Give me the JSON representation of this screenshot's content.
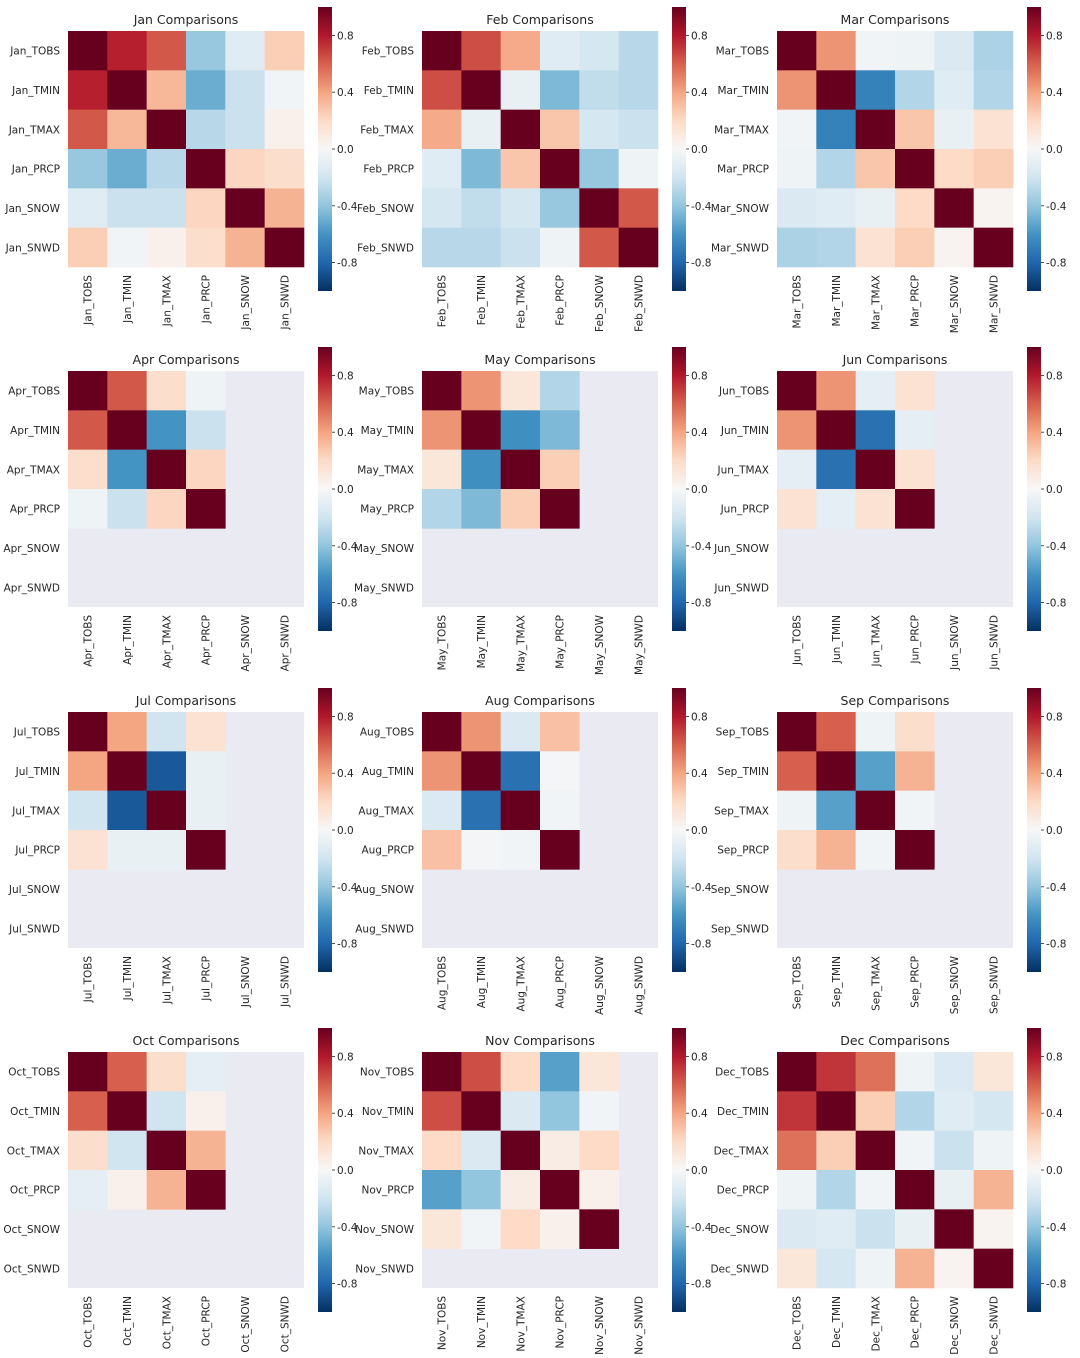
{
  "chart_data": [
    {
      "type": "heatmap",
      "title": "Jan Comparisons",
      "labels": [
        "Jan_TOBS",
        "Jan_TMIN",
        "Jan_TMAX",
        "Jan_PRCP",
        "Jan_SNOW",
        "Jan_SNWD"
      ],
      "values": [
        [
          1.0,
          0.78,
          0.62,
          -0.38,
          -0.12,
          0.25
        ],
        [
          0.78,
          1.0,
          0.33,
          -0.5,
          -0.22,
          -0.03
        ],
        [
          0.62,
          0.33,
          1.0,
          -0.28,
          -0.22,
          0.05
        ],
        [
          -0.38,
          -0.5,
          -0.28,
          1.0,
          0.22,
          0.18
        ],
        [
          -0.12,
          -0.22,
          -0.22,
          0.22,
          1.0,
          0.35
        ],
        [
          0.25,
          -0.03,
          0.05,
          0.18,
          0.35,
          1.0
        ]
      ],
      "vmin": -1.0,
      "vmax": 1.0,
      "colorbar_ticks": [
        "0.8",
        "0.4",
        "0.0",
        "-0.4",
        "-0.8"
      ]
    },
    {
      "type": "heatmap",
      "title": "Feb Comparisons",
      "labels": [
        "Feb_TOBS",
        "Feb_TMIN",
        "Feb_TMAX",
        "Feb_PRCP",
        "Feb_SNOW",
        "Feb_SNWD"
      ],
      "values": [
        [
          1.0,
          0.65,
          0.38,
          -0.12,
          -0.18,
          -0.28
        ],
        [
          0.65,
          1.0,
          -0.08,
          -0.45,
          -0.25,
          -0.28
        ],
        [
          0.38,
          -0.08,
          1.0,
          0.28,
          -0.18,
          -0.22
        ],
        [
          -0.12,
          -0.45,
          0.28,
          1.0,
          -0.38,
          -0.05
        ],
        [
          -0.18,
          -0.25,
          -0.18,
          -0.38,
          1.0,
          0.62
        ],
        [
          -0.28,
          -0.28,
          -0.22,
          -0.05,
          0.62,
          1.0
        ]
      ],
      "vmin": -1.0,
      "vmax": 1.0,
      "colorbar_ticks": [
        "0.8",
        "0.4",
        "0.0",
        "-0.4",
        "-0.8"
      ]
    },
    {
      "type": "heatmap",
      "title": "Mar Comparisons",
      "labels": [
        "Mar_TOBS",
        "Mar_TMIN",
        "Mar_TMAX",
        "Mar_PRCP",
        "Mar_SNOW",
        "Mar_SNWD"
      ],
      "values": [
        [
          1.0,
          0.45,
          -0.03,
          -0.05,
          -0.15,
          -0.32
        ],
        [
          0.45,
          1.0,
          -0.68,
          -0.3,
          -0.12,
          -0.3
        ],
        [
          -0.03,
          -0.68,
          1.0,
          0.28,
          -0.08,
          0.15
        ],
        [
          -0.05,
          -0.3,
          0.28,
          1.0,
          0.2,
          0.25
        ],
        [
          -0.15,
          -0.12,
          -0.08,
          0.2,
          1.0,
          0.03
        ],
        [
          -0.32,
          -0.3,
          0.15,
          0.25,
          0.03,
          1.0
        ]
      ],
      "vmin": -1.0,
      "vmax": 1.0,
      "colorbar_ticks": [
        "0.8",
        "0.4",
        "0.0",
        "-0.4",
        "-0.8"
      ]
    },
    {
      "type": "heatmap",
      "title": "Apr Comparisons",
      "labels": [
        "Apr_TOBS",
        "Apr_TMIN",
        "Apr_TMAX",
        "Apr_PRCP",
        "Apr_SNOW",
        "Apr_SNWD"
      ],
      "values": [
        [
          1.0,
          0.62,
          0.18,
          -0.05,
          null,
          null
        ],
        [
          0.62,
          1.0,
          -0.6,
          -0.22,
          null,
          null
        ],
        [
          0.18,
          -0.6,
          1.0,
          0.22,
          null,
          null
        ],
        [
          -0.05,
          -0.22,
          0.22,
          1.0,
          null,
          null
        ],
        [
          null,
          null,
          null,
          null,
          null,
          null
        ],
        [
          null,
          null,
          null,
          null,
          null,
          null
        ]
      ],
      "vmin": -1.0,
      "vmax": 1.0,
      "colorbar_ticks": [
        "0.8",
        "0.4",
        "0.0",
        "-0.4",
        "-0.8"
      ]
    },
    {
      "type": "heatmap",
      "title": "May Comparisons",
      "labels": [
        "May_TOBS",
        "May_TMIN",
        "May_TMAX",
        "May_PRCP",
        "May_SNOW",
        "May_SNWD"
      ],
      "values": [
        [
          1.0,
          0.45,
          0.12,
          -0.3,
          null,
          null
        ],
        [
          0.45,
          1.0,
          -0.62,
          -0.45,
          null,
          null
        ],
        [
          0.12,
          -0.62,
          1.0,
          0.25,
          null,
          null
        ],
        [
          -0.3,
          -0.45,
          0.25,
          1.0,
          null,
          null
        ],
        [
          null,
          null,
          null,
          null,
          null,
          null
        ],
        [
          null,
          null,
          null,
          null,
          null,
          null
        ]
      ],
      "vmin": -1.0,
      "vmax": 1.0,
      "colorbar_ticks": [
        "0.8",
        "0.4",
        "0.0",
        "-0.4",
        "-0.8"
      ]
    },
    {
      "type": "heatmap",
      "title": "Jun Comparisons",
      "labels": [
        "Jun_TOBS",
        "Jun_TMIN",
        "Jun_TMAX",
        "Jun_PRCP",
        "Jun_SNOW",
        "Jun_SNWD"
      ],
      "values": [
        [
          1.0,
          0.45,
          -0.1,
          0.15,
          null,
          null
        ],
        [
          0.45,
          1.0,
          -0.75,
          -0.1,
          null,
          null
        ],
        [
          -0.1,
          -0.75,
          1.0,
          0.15,
          null,
          null
        ],
        [
          0.15,
          -0.1,
          0.15,
          1.0,
          null,
          null
        ],
        [
          null,
          null,
          null,
          null,
          null,
          null
        ],
        [
          null,
          null,
          null,
          null,
          null,
          null
        ]
      ],
      "vmin": -1.0,
      "vmax": 1.0,
      "colorbar_ticks": [
        "0.8",
        "0.4",
        "0.0",
        "-0.4",
        "-0.8"
      ]
    },
    {
      "type": "heatmap",
      "title": "Jul Comparisons",
      "labels": [
        "Jul_TOBS",
        "Jul_TMIN",
        "Jul_TMAX",
        "Jul_PRCP",
        "Jul_SNOW",
        "Jul_SNWD"
      ],
      "values": [
        [
          1.0,
          0.4,
          -0.2,
          0.15,
          null,
          null
        ],
        [
          0.4,
          1.0,
          -0.85,
          -0.08,
          null,
          null
        ],
        [
          -0.2,
          -0.85,
          1.0,
          -0.08,
          null,
          null
        ],
        [
          0.15,
          -0.08,
          -0.08,
          1.0,
          null,
          null
        ],
        [
          null,
          null,
          null,
          null,
          null,
          null
        ],
        [
          null,
          null,
          null,
          null,
          null,
          null
        ]
      ],
      "vmin": -1.0,
      "vmax": 1.0,
      "colorbar_ticks": [
        "0.8",
        "0.4",
        "0.0",
        "-0.4",
        "-0.8"
      ]
    },
    {
      "type": "heatmap",
      "title": "Aug Comparisons",
      "labels": [
        "Aug_TOBS",
        "Aug_TMIN",
        "Aug_TMAX",
        "Aug_PRCP",
        "Aug_SNOW",
        "Aug_SNWD"
      ],
      "values": [
        [
          1.0,
          0.45,
          -0.15,
          0.3,
          null,
          null
        ],
        [
          0.45,
          1.0,
          -0.75,
          -0.02,
          null,
          null
        ],
        [
          -0.15,
          -0.75,
          1.0,
          -0.03,
          null,
          null
        ],
        [
          0.3,
          -0.02,
          -0.03,
          1.0,
          null,
          null
        ],
        [
          null,
          null,
          null,
          null,
          null,
          null
        ],
        [
          null,
          null,
          null,
          null,
          null,
          null
        ]
      ],
      "vmin": -1.0,
      "vmax": 1.0,
      "colorbar_ticks": [
        "0.8",
        "0.4",
        "0.0",
        "-0.4",
        "-0.8"
      ]
    },
    {
      "type": "heatmap",
      "title": "Sep Comparisons",
      "labels": [
        "Sep_TOBS",
        "Sep_TMIN",
        "Sep_TMAX",
        "Sep_PRCP",
        "Sep_SNOW",
        "Sep_SNWD"
      ],
      "values": [
        [
          1.0,
          0.6,
          -0.05,
          0.18,
          null,
          null
        ],
        [
          0.6,
          1.0,
          -0.55,
          0.35,
          null,
          null
        ],
        [
          -0.05,
          -0.55,
          1.0,
          -0.03,
          null,
          null
        ],
        [
          0.18,
          0.35,
          -0.03,
          1.0,
          null,
          null
        ],
        [
          null,
          null,
          null,
          null,
          null,
          null
        ],
        [
          null,
          null,
          null,
          null,
          null,
          null
        ]
      ],
      "vmin": -1.0,
      "vmax": 1.0,
      "colorbar_ticks": [
        "0.8",
        "0.4",
        "0.0",
        "-0.4",
        "-0.8"
      ]
    },
    {
      "type": "heatmap",
      "title": "Oct Comparisons",
      "labels": [
        "Oct_TOBS",
        "Oct_TMIN",
        "Oct_TMAX",
        "Oct_PRCP",
        "Oct_SNOW",
        "Oct_SNWD"
      ],
      "values": [
        [
          1.0,
          0.6,
          0.18,
          -0.1,
          null,
          null
        ],
        [
          0.6,
          1.0,
          -0.2,
          0.05,
          null,
          null
        ],
        [
          0.18,
          -0.2,
          1.0,
          0.35,
          null,
          null
        ],
        [
          -0.1,
          0.05,
          0.35,
          1.0,
          null,
          null
        ],
        [
          null,
          null,
          null,
          null,
          null,
          null
        ],
        [
          null,
          null,
          null,
          null,
          null,
          null
        ]
      ],
      "vmin": -1.0,
      "vmax": 1.0,
      "colorbar_ticks": [
        "0.8",
        "0.4",
        "0.0",
        "-0.4",
        "-0.8"
      ]
    },
    {
      "type": "heatmap",
      "title": "Nov Comparisons",
      "labels": [
        "Nov_TOBS",
        "Nov_TMIN",
        "Nov_TMAX",
        "Nov_PRCP",
        "Nov_SNOW",
        "Nov_SNWD"
      ],
      "values": [
        [
          1.0,
          0.65,
          0.2,
          -0.55,
          0.12,
          null
        ],
        [
          0.65,
          1.0,
          -0.15,
          -0.4,
          -0.03,
          null
        ],
        [
          0.2,
          -0.15,
          1.0,
          0.08,
          0.2,
          null
        ],
        [
          -0.55,
          -0.4,
          0.08,
          1.0,
          0.05,
          null
        ],
        [
          0.12,
          -0.03,
          0.2,
          0.05,
          1.0,
          null
        ],
        [
          null,
          null,
          null,
          null,
          null,
          null
        ]
      ],
      "vmin": -1.0,
      "vmax": 1.0,
      "colorbar_ticks": [
        "0.8",
        "0.4",
        "0.0",
        "-0.4",
        "-0.8"
      ]
    },
    {
      "type": "heatmap",
      "title": "Dec Comparisons",
      "labels": [
        "Dec_TOBS",
        "Dec_TMIN",
        "Dec_TMAX",
        "Dec_PRCP",
        "Dec_SNOW",
        "Dec_SNWD"
      ],
      "values": [
        [
          1.0,
          0.72,
          0.55,
          -0.05,
          -0.15,
          0.12
        ],
        [
          0.72,
          1.0,
          0.25,
          -0.3,
          -0.12,
          -0.18
        ],
        [
          0.55,
          0.25,
          1.0,
          -0.03,
          -0.22,
          -0.05
        ],
        [
          -0.05,
          -0.3,
          -0.03,
          1.0,
          -0.08,
          0.35
        ],
        [
          -0.15,
          -0.12,
          -0.22,
          -0.08,
          1.0,
          0.03
        ],
        [
          0.12,
          -0.18,
          -0.05,
          0.35,
          0.03,
          1.0
        ]
      ],
      "vmin": -1.0,
      "vmax": 1.0,
      "colorbar_ticks": [
        "0.8",
        "0.4",
        "0.0",
        "-0.4",
        "-0.8"
      ]
    }
  ],
  "colors": {
    "background": "#ffffff",
    "nan_background": "#eaeaf2",
    "colormap": "RdBu_r"
  }
}
